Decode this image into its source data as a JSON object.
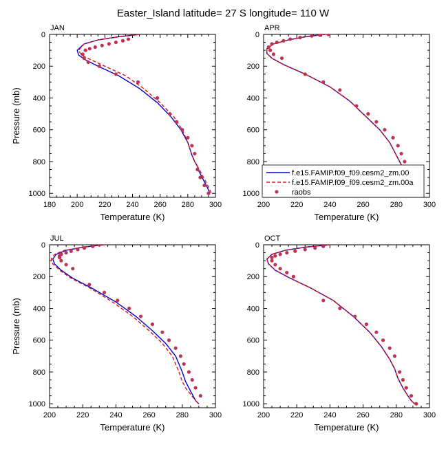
{
  "title": "Easter_Island  latitude= 27 S longitude= 110 W",
  "legend": {
    "entries": [
      {
        "label": "f.e15.FAMIP.f09_f09.cesm2_zm.00",
        "color": "#0000cc",
        "style": "solid"
      },
      {
        "label": "f.e15.FAMIP.f09_f09.cesm2_zm.00a",
        "color": "#dd1111",
        "style": "dashed"
      },
      {
        "label": "raobs",
        "color": "#bb3355",
        "style": "dots"
      }
    ]
  },
  "colors": {
    "model_a": "#0000cc",
    "model_b": "#dd1111",
    "obs": "#bb3355"
  },
  "chart_data": [
    {
      "type": "line",
      "panel": "JAN",
      "title": "JAN",
      "xlabel": "Temperature (K)",
      "ylabel": "Pressure (mb)",
      "xlim": [
        180,
        300
      ],
      "ylim": [
        1025,
        0
      ],
      "xticks": [
        180,
        200,
        220,
        240,
        260,
        280,
        300
      ],
      "yticks": [
        0,
        200,
        400,
        600,
        800,
        1000
      ],
      "series": [
        {
          "name": "f.e15.FAMIP.f09_f09.cesm2_zm.00",
          "x": [
            245,
            230,
            215,
            205,
            200,
            201,
            206,
            215,
            230,
            245,
            258,
            268,
            275,
            280,
            283,
            285,
            287,
            288,
            291,
            294,
            296
          ],
          "y": [
            0,
            15,
            35,
            60,
            100,
            130,
            160,
            200,
            260,
            340,
            430,
            520,
            600,
            680,
            760,
            800,
            830,
            860,
            910,
            960,
            1000
          ]
        },
        {
          "name": "f.e15.FAMIP.f09_f09.cesm2_zm.00a",
          "x": [
            245,
            230,
            215,
            205,
            201,
            203,
            210,
            220,
            235,
            248,
            260,
            270,
            276,
            280,
            283,
            285,
            287,
            289,
            292,
            295,
            297
          ],
          "y": [
            0,
            15,
            35,
            60,
            100,
            130,
            160,
            200,
            260,
            340,
            430,
            520,
            600,
            680,
            760,
            800,
            830,
            860,
            910,
            960,
            1000
          ]
        },
        {
          "name": "raobs",
          "x": [
            237,
            233,
            228,
            223,
            218,
            213,
            209,
            206,
            204,
            205,
            208,
            216,
            228,
            244,
            258,
            267,
            272,
            276,
            280,
            283,
            285,
            287,
            289,
            292,
            295
          ],
          "y": [
            30,
            40,
            50,
            60,
            70,
            80,
            90,
            100,
            125,
            150,
            175,
            200,
            250,
            300,
            400,
            500,
            550,
            600,
            650,
            700,
            750,
            850,
            900,
            950,
            1000
          ]
        }
      ]
    },
    {
      "type": "line",
      "panel": "APR",
      "title": "APR",
      "xlabel": "Temperature (K)",
      "ylabel": "",
      "xlim": [
        200,
        300
      ],
      "ylim": [
        1025,
        0
      ],
      "xticks": [
        200,
        220,
        240,
        260,
        280,
        300
      ],
      "yticks": [
        0,
        200,
        400,
        600,
        800,
        1000
      ],
      "series": [
        {
          "name": "f.e15.FAMIP.f09_f09.cesm2_zm.00",
          "x": [
            237,
            225,
            215,
            206,
            202,
            202,
            205,
            212,
            225,
            240,
            252,
            262,
            270,
            276,
            280,
            283,
            286,
            288,
            291,
            294,
            295
          ],
          "y": [
            0,
            15,
            35,
            60,
            90,
            120,
            150,
            190,
            250,
            330,
            420,
            520,
            600,
            680,
            760,
            820,
            870,
            900,
            940,
            980,
            1000
          ]
        },
        {
          "name": "f.e15.FAMIP.f09_f09.cesm2_zm.00a",
          "x": [
            237,
            225,
            215,
            206,
            202,
            202,
            205,
            212,
            225,
            240,
            252,
            262,
            270,
            276,
            280,
            283,
            286,
            288,
            291,
            294,
            295
          ],
          "y": [
            0,
            15,
            35,
            60,
            90,
            120,
            150,
            190,
            250,
            330,
            420,
            520,
            600,
            680,
            760,
            820,
            870,
            900,
            940,
            980,
            1000
          ]
        },
        {
          "name": "raobs",
          "x": [
            239,
            234,
            229,
            222,
            216,
            212,
            208,
            205,
            203,
            204,
            206,
            211,
            225,
            236,
            246,
            256,
            263,
            268,
            273,
            278,
            281,
            283,
            285,
            287,
            289,
            292,
            295
          ],
          "y": [
            0,
            5,
            10,
            20,
            30,
            40,
            50,
            60,
            80,
            100,
            125,
            150,
            250,
            300,
            350,
            450,
            500,
            550,
            600,
            650,
            700,
            750,
            800,
            850,
            900,
            950,
            1000
          ]
        }
      ]
    },
    {
      "type": "line",
      "panel": "JUL",
      "title": "JUL",
      "xlabel": "Temperature (K)",
      "ylabel": "Pressure (mb)",
      "xlim": [
        200,
        300
      ],
      "ylim": [
        1025,
        0
      ],
      "xticks": [
        200,
        220,
        240,
        260,
        280,
        300
      ],
      "yticks": [
        0,
        200,
        400,
        600,
        800,
        1000
      ],
      "series": [
        {
          "name": "f.e15.FAMIP.f09_f09.cesm2_zm.00",
          "x": [
            233,
            220,
            210,
            204,
            202,
            203,
            207,
            214,
            225,
            240,
            252,
            262,
            270,
            276,
            280,
            282,
            284,
            286,
            288,
            290
          ],
          "y": [
            0,
            15,
            35,
            60,
            90,
            120,
            160,
            210,
            270,
            360,
            450,
            540,
            620,
            700,
            800,
            860,
            900,
            940,
            980,
            1000
          ]
        },
        {
          "name": "f.e15.FAMIP.f09_f09.cesm2_zm.00a",
          "x": [
            233,
            220,
            209,
            203,
            201,
            202,
            206,
            213,
            224,
            238,
            250,
            260,
            268,
            274,
            278,
            280,
            282,
            285,
            288,
            290
          ],
          "y": [
            0,
            15,
            35,
            60,
            90,
            120,
            160,
            210,
            270,
            360,
            450,
            540,
            620,
            700,
            800,
            860,
            900,
            940,
            980,
            1000
          ]
        },
        {
          "name": "raobs",
          "x": [
            230,
            226,
            221,
            217,
            213,
            210,
            207,
            206,
            206,
            207,
            210,
            214,
            224,
            233,
            241,
            248,
            255,
            262,
            268,
            272,
            276,
            279,
            281,
            284,
            286,
            288,
            291
          ],
          "y": [
            0,
            10,
            20,
            30,
            40,
            50,
            60,
            70,
            80,
            100,
            125,
            150,
            250,
            300,
            350,
            400,
            450,
            500,
            550,
            600,
            650,
            700,
            750,
            800,
            850,
            900,
            950
          ]
        }
      ]
    },
    {
      "type": "line",
      "panel": "OCT",
      "title": "OCT",
      "xlabel": "Temperature (K)",
      "ylabel": "",
      "xlim": [
        200,
        300
      ],
      "ylim": [
        1025,
        0
      ],
      "xticks": [
        200,
        220,
        240,
        260,
        280,
        300
      ],
      "yticks": [
        0,
        200,
        400,
        600,
        800,
        1000
      ],
      "series": [
        {
          "name": "f.e15.FAMIP.f09_f09.cesm2_zm.00",
          "x": [
            240,
            225,
            213,
            205,
            202,
            203,
            207,
            216,
            228,
            242,
            254,
            264,
            271,
            276,
            279,
            281,
            284,
            287,
            289,
            291
          ],
          "y": [
            0,
            15,
            35,
            60,
            90,
            120,
            160,
            210,
            270,
            350,
            450,
            550,
            640,
            720,
            780,
            840,
            900,
            950,
            980,
            1000
          ]
        },
        {
          "name": "f.e15.FAMIP.f09_f09.cesm2_zm.00a",
          "x": [
            240,
            225,
            213,
            205,
            202,
            203,
            207,
            216,
            228,
            242,
            254,
            264,
            271,
            276,
            279,
            281,
            284,
            287,
            289,
            291
          ],
          "y": [
            0,
            15,
            35,
            60,
            90,
            120,
            160,
            210,
            270,
            350,
            450,
            550,
            640,
            720,
            780,
            840,
            900,
            950,
            980,
            1000
          ]
        },
        {
          "name": "raobs",
          "x": [
            236,
            231,
            225,
            219,
            214,
            210,
            207,
            205,
            205,
            207,
            210,
            214,
            218,
            236,
            246,
            255,
            262,
            268,
            272,
            276,
            279,
            282,
            284,
            286,
            289,
            292
          ],
          "y": [
            10,
            20,
            30,
            40,
            50,
            60,
            70,
            80,
            100,
            125,
            150,
            175,
            200,
            350,
            400,
            450,
            500,
            550,
            600,
            650,
            700,
            800,
            850,
            900,
            950,
            1000
          ]
        }
      ]
    }
  ]
}
